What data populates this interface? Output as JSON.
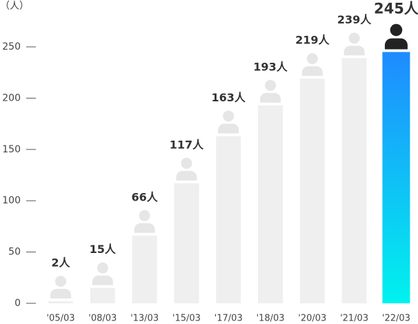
{
  "chart_data": {
    "type": "bar",
    "y_axis_label": "（人）",
    "categories": [
      "'05/03",
      "'08/03",
      "'13/03",
      "'15/03",
      "'17/03",
      "'18/03",
      "'20/03",
      "'21/03",
      "'22/03"
    ],
    "values": [
      2,
      15,
      66,
      117,
      163,
      193,
      219,
      239,
      245
    ],
    "value_labels": [
      "2人",
      "15人",
      "66人",
      "117人",
      "163人",
      "193人",
      "219人",
      "239人",
      "245人"
    ],
    "color": "#efefef",
    "highlight_gradient": [
      "#1f8bff",
      "#00f2ee"
    ],
    "icon_color": "#e6e6e6",
    "highlight_icon_color": "#222222",
    "ylim": [
      0,
      250
    ],
    "yticks": [
      0,
      50,
      100,
      150,
      200,
      250
    ]
  }
}
